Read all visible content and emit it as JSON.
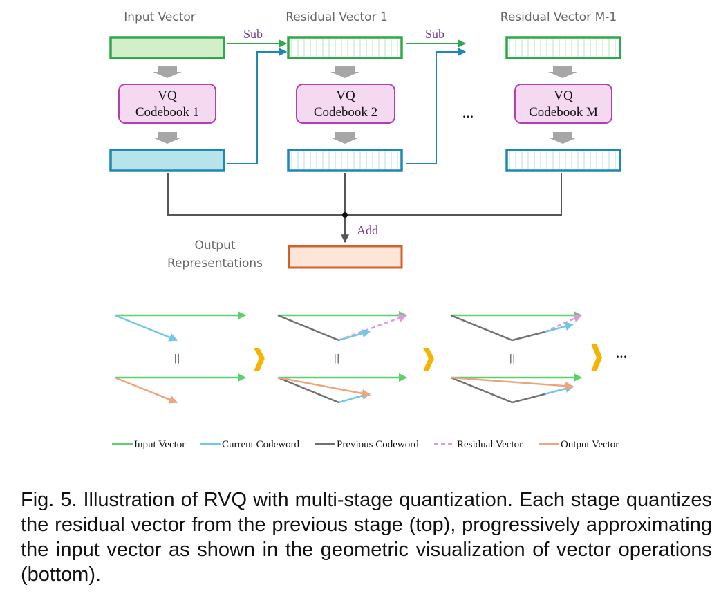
{
  "top": {
    "col_labels": [
      "Input Vector",
      "Residual Vector 1",
      "Residual Vector M-1"
    ],
    "sub_label": "Sub",
    "add_label": "Add",
    "vq_title": "VQ",
    "codebooks": [
      "Codebook 1",
      "Codebook 2",
      "Codebook M"
    ],
    "ellipsis": "...",
    "output_label": [
      "Output",
      "Representations"
    ]
  },
  "bottom": {
    "equals": "=",
    "ellipsis": "..."
  },
  "legend": [
    {
      "label": "Input Vector",
      "color": "#5ad16a",
      "style": "solid"
    },
    {
      "label": "Current Codeword",
      "color": "#6fc8ea",
      "style": "solid"
    },
    {
      "label": "Previous Codeword",
      "color": "#707070",
      "style": "solid"
    },
    {
      "label": "Residual Vector",
      "color": "#e199dc",
      "style": "dashed"
    },
    {
      "label": "Output Vector",
      "color": "#eda67c",
      "style": "solid"
    }
  ],
  "colors": {
    "green": "#2fa84a",
    "green_light": "#5ad16a",
    "blue": "#1e88b4",
    "blue_light": "#6fc8ea",
    "purple_border": "#b43fb0",
    "purple_fill": "#f4d9f1",
    "orange": "#d35f2b",
    "peach": "#eda67c",
    "gray": "#707070",
    "amber": "#f5b400"
  },
  "caption": "Fig. 5. Illustration of RVQ with multi-stage quantization. Each stage quantizes the residual vector from the previous stage (top), progressively approximating the input vector as shown in the geometric visualization of vector operations (bottom)."
}
